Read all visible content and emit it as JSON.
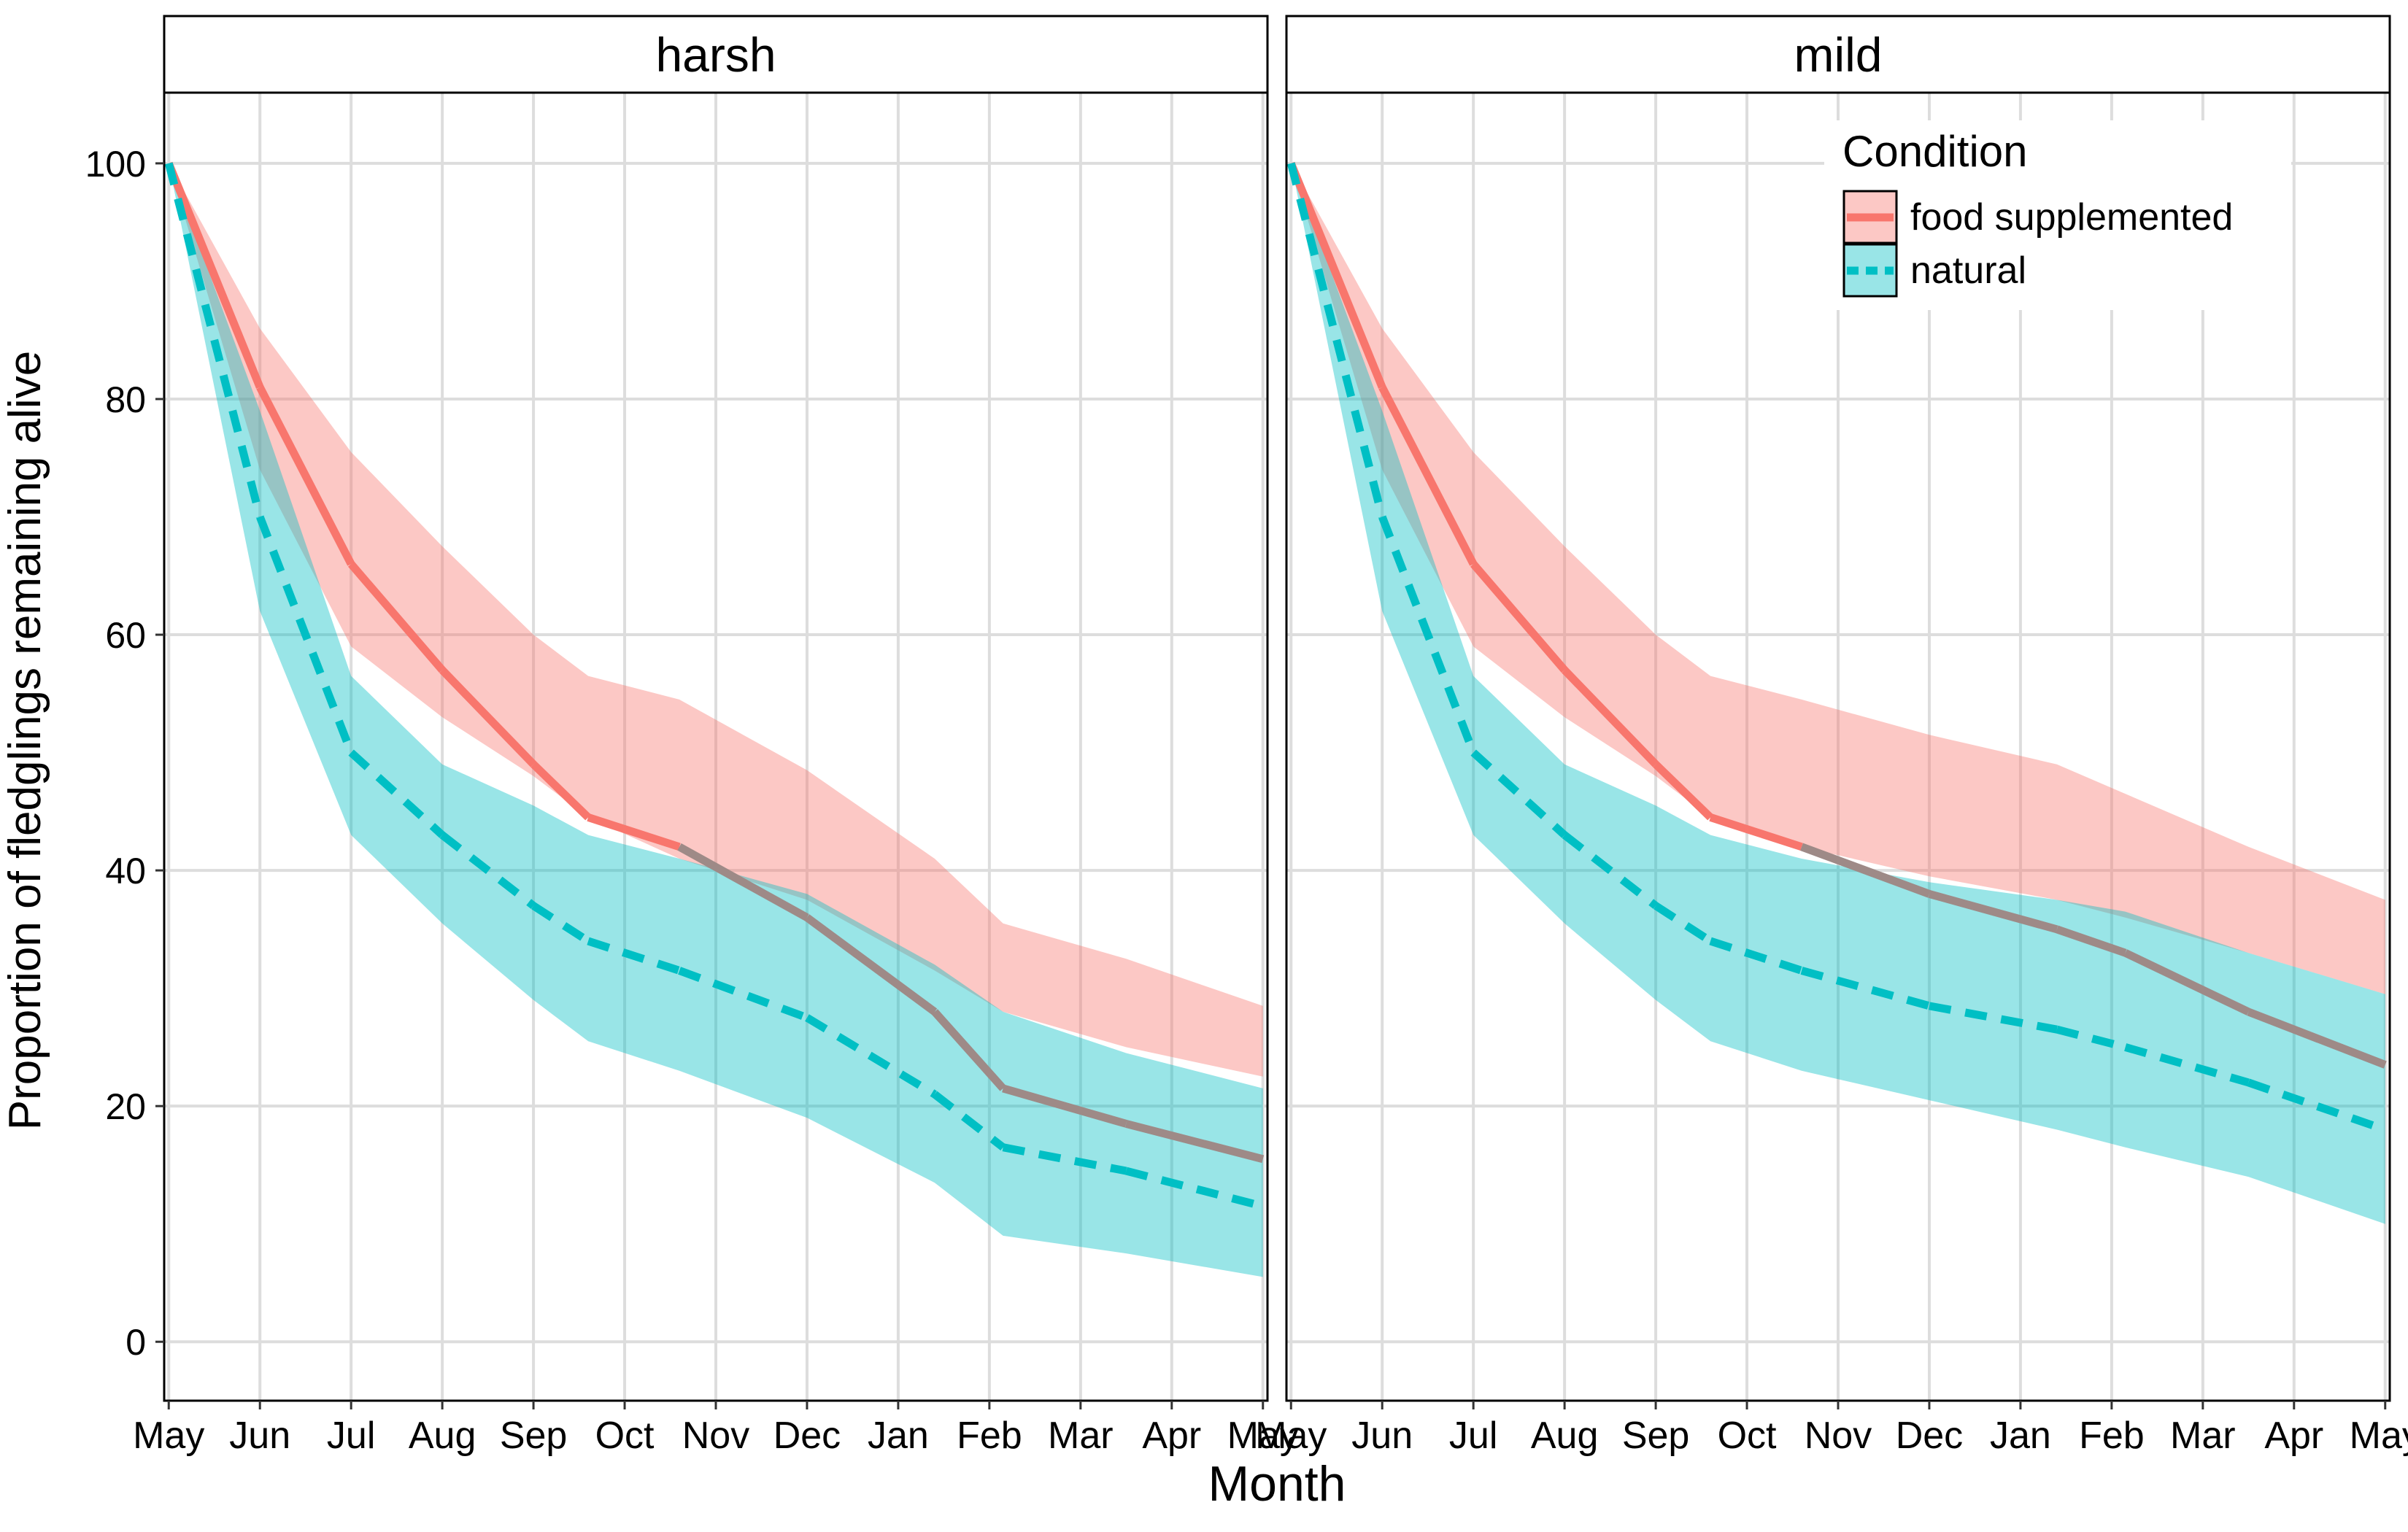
{
  "chart_data": {
    "type": "line",
    "facet_strips": [
      "harsh",
      "mild"
    ],
    "xlabel": "Month",
    "ylabel": "Proportion of fledglings remaining alive",
    "x_tick_labels": [
      "May",
      "Jun",
      "Jul",
      "Aug",
      "Sep",
      "Oct",
      "Nov",
      "Dec",
      "Jan",
      "Feb",
      "Mar",
      "Apr",
      "May"
    ],
    "x_range": [
      -0.05,
      12.05
    ],
    "y_ticks": [
      0,
      20,
      40,
      60,
      80,
      100
    ],
    "ylim": [
      -5,
      106
    ],
    "grid": true,
    "legend": {
      "title": "Condition",
      "placement": "top-right inside the second panel",
      "entries": [
        "food supplemented",
        "natural"
      ]
    },
    "colors": {
      "food supplemented": "#F8766D",
      "natural": "#00BFC4",
      "overlap_line": "#9E8A87"
    },
    "panels": [
      {
        "strip": "harsh",
        "series": [
          {
            "name": "food supplemented",
            "line": "solid",
            "x": [
              0,
              1,
              2,
              3,
              4,
              4.6,
              5.6,
              7,
              8.4,
              9.15,
              10.5,
              12
            ],
            "y": [
              100,
              81,
              66,
              57,
              49,
              44.5,
              42,
              36,
              28,
              21.5,
              18.5,
              15.5
            ],
            "ci_lower": [
              100,
              74,
              59,
              53,
              48,
              44.5,
              41,
              37.5,
              31.5,
              28,
              25,
              22.5
            ],
            "ci_upper": [
              100,
              86,
              75.5,
              67.5,
              60,
              56.5,
              54.5,
              48.5,
              41,
              35.5,
              32.5,
              28.5
            ]
          },
          {
            "name": "natural",
            "line": "dashed",
            "x": [
              0,
              1,
              2,
              3,
              4,
              4.6,
              5.6,
              7,
              8.4,
              9.15,
              10.5,
              12
            ],
            "y": [
              100,
              70,
              50,
              43,
              37,
              34,
              31.5,
              27.5,
              21,
              16.5,
              14.5,
              11.5
            ],
            "ci_lower": [
              100,
              62,
              43,
              35.5,
              29,
              25.5,
              23,
              19,
              13.5,
              9,
              7.5,
              5.5
            ],
            "ci_upper": [
              100,
              79,
              56.5,
              49,
              45.5,
              43,
              41,
              38,
              32,
              28,
              24.5,
              21.5
            ]
          }
        ]
      },
      {
        "strip": "mild",
        "series": [
          {
            "name": "food supplemented",
            "line": "solid",
            "x": [
              0,
              1,
              2,
              3,
              4,
              4.6,
              5.6,
              7,
              8.4,
              9.15,
              10.5,
              12
            ],
            "y": [
              100,
              81,
              66,
              57,
              49,
              44.5,
              42,
              38,
              35,
              33,
              28,
              23.5
            ],
            "ci_lower": [
              100,
              74,
              59,
              53,
              48,
              44.5,
              42,
              39.5,
              37.5,
              36,
              33,
              29.5
            ],
            "ci_upper": [
              100,
              86,
              75.5,
              67.5,
              60,
              56.5,
              54.5,
              51.5,
              49,
              46.5,
              42,
              37.5
            ]
          },
          {
            "name": "natural",
            "line": "dashed",
            "x": [
              0,
              1,
              2,
              3,
              4,
              4.6,
              5.6,
              7,
              8.4,
              9.15,
              10.5,
              12
            ],
            "y": [
              100,
              70,
              50,
              43,
              37,
              34,
              31.5,
              28.5,
              26.5,
              25,
              22,
              18
            ],
            "ci_lower": [
              100,
              62,
              43,
              35.5,
              29,
              25.5,
              23,
              20.5,
              18,
              16.5,
              14,
              10
            ],
            "ci_upper": [
              100,
              79,
              56.5,
              49,
              45.5,
              43,
              41,
              39,
              37.5,
              36.5,
              33,
              29.5
            ]
          }
        ]
      }
    ]
  }
}
